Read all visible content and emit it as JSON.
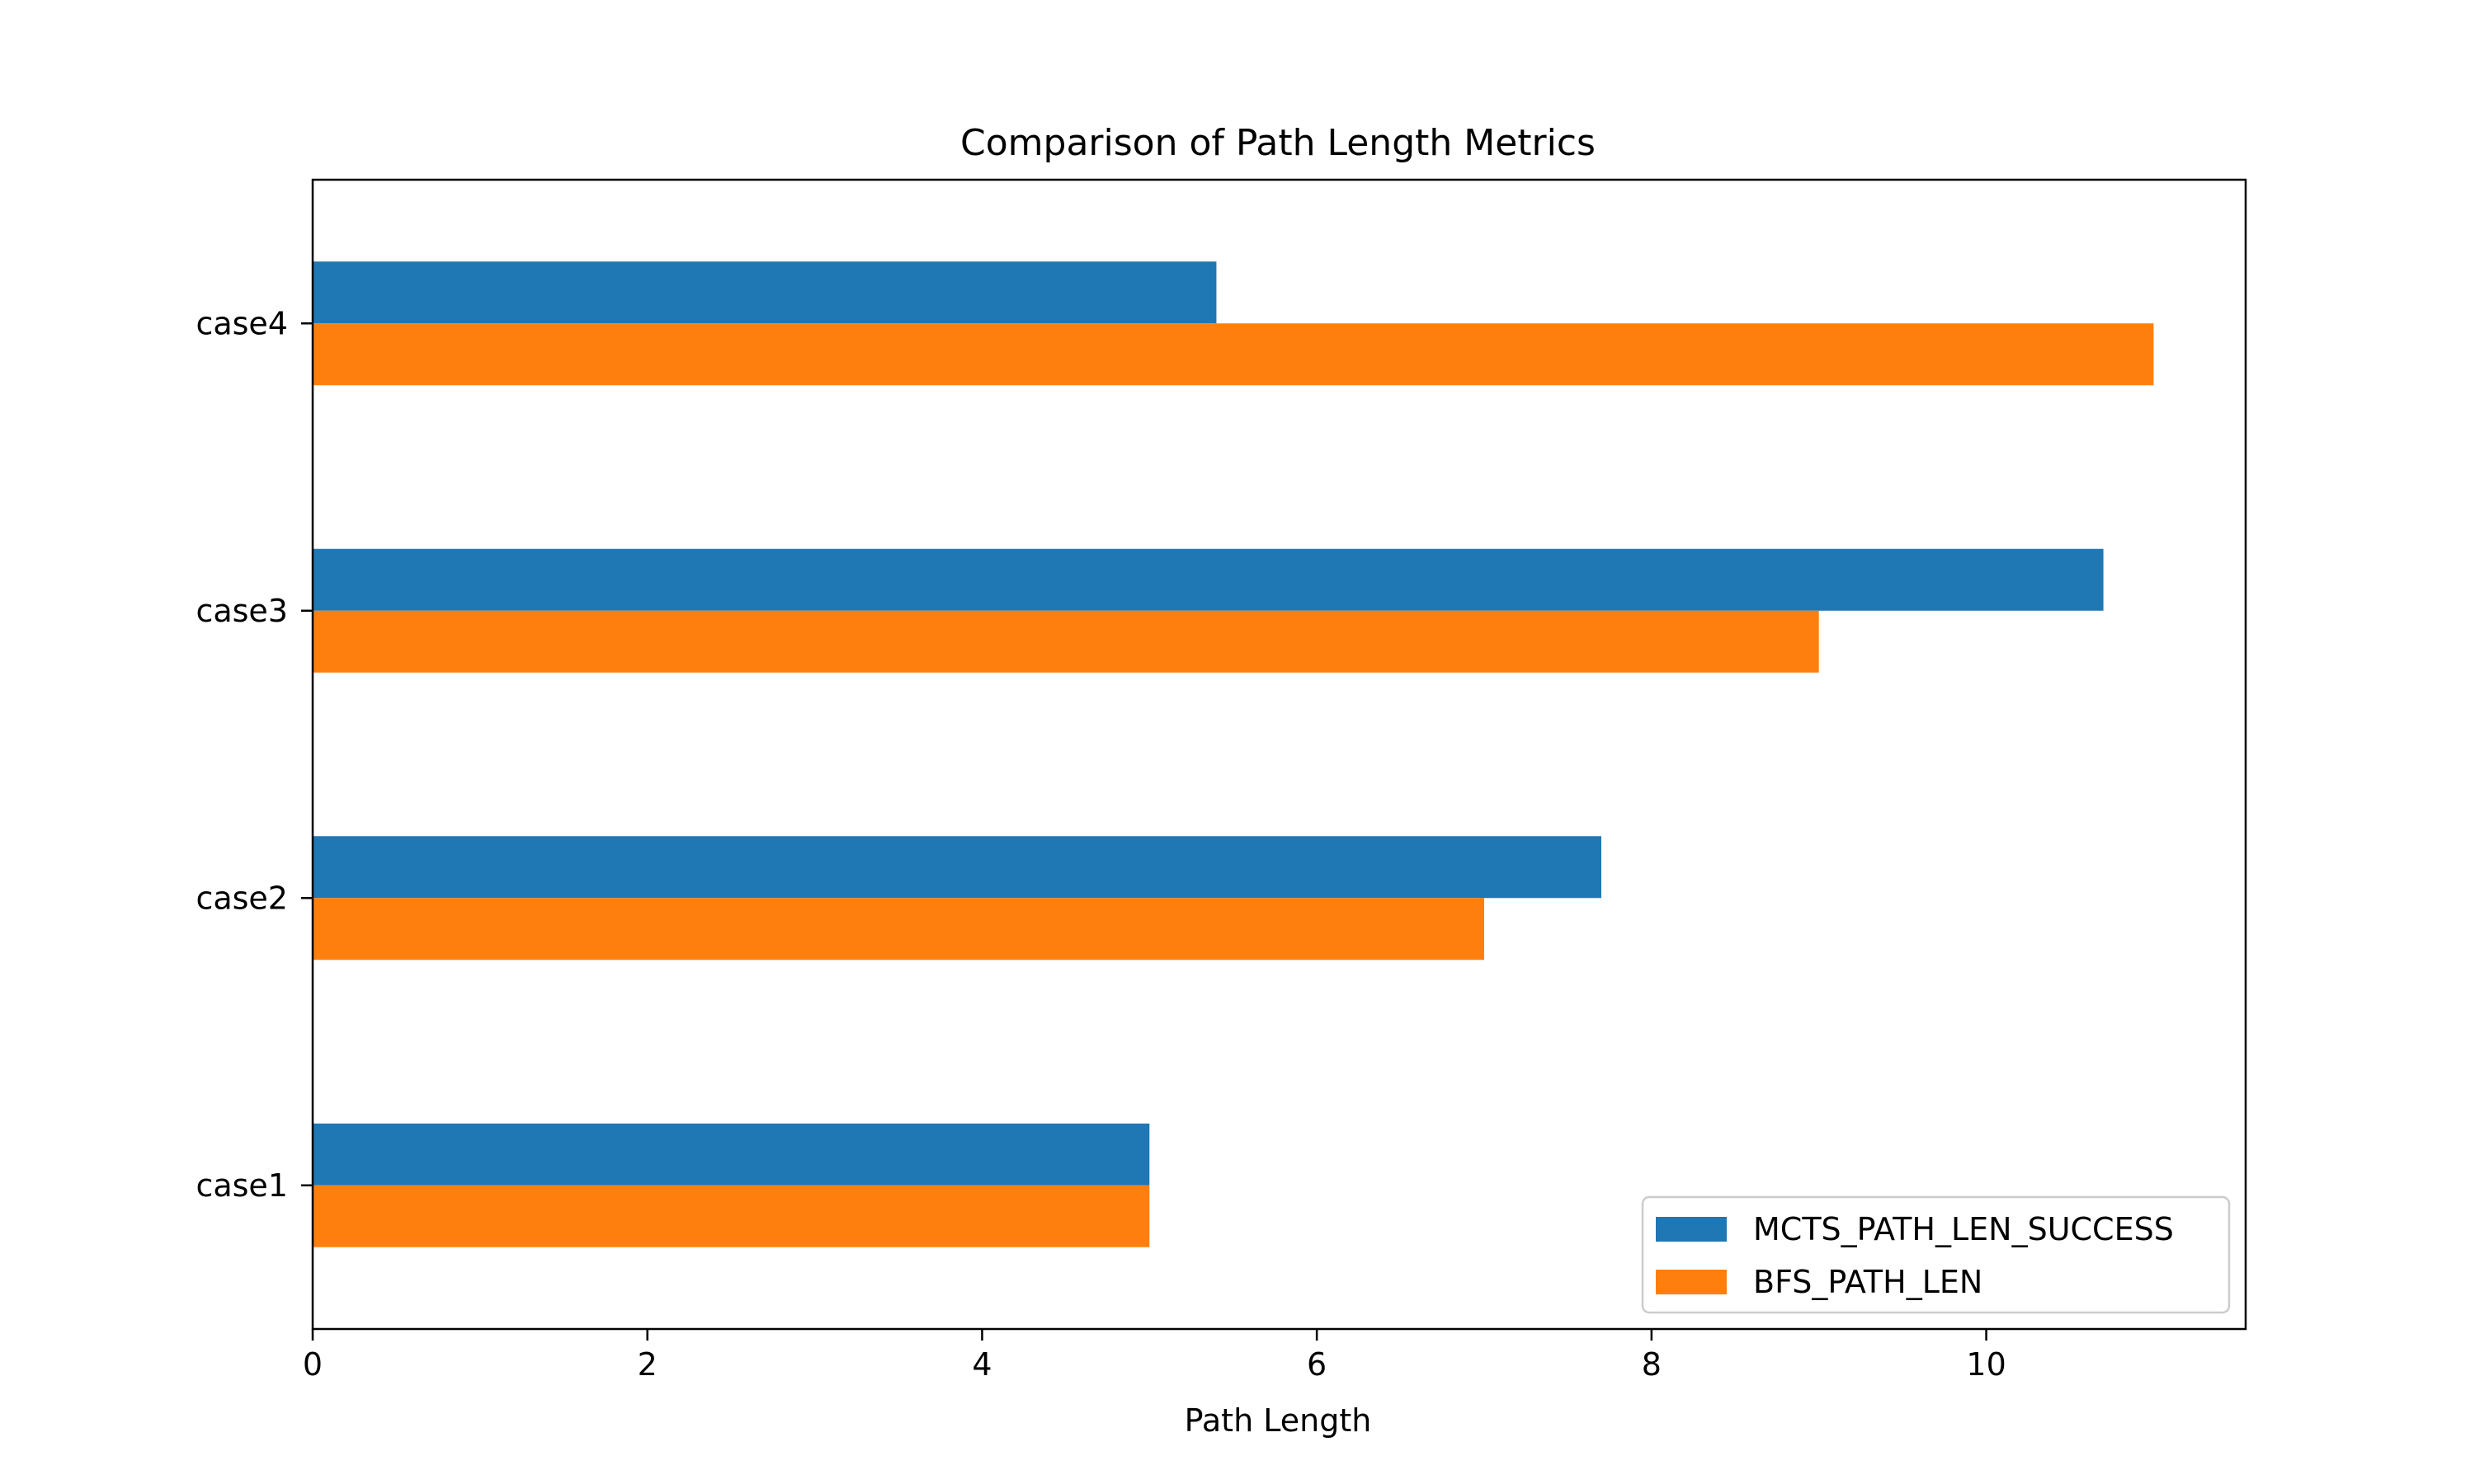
{
  "chart_data": {
    "type": "bar",
    "orientation": "horizontal",
    "title": "Comparison of Path Length Metrics",
    "xlabel": "Path Length",
    "ylabel": "",
    "categories": [
      "case1",
      "case2",
      "case3",
      "case4"
    ],
    "series": [
      {
        "name": "MCTS_PATH_LEN_SUCCESS",
        "color": "#1f77b4",
        "values": [
          5.0,
          7.7,
          10.7,
          5.4
        ]
      },
      {
        "name": "BFS_PATH_LEN",
        "color": "#ff7f0e",
        "values": [
          5.0,
          7.0,
          9.0,
          11.0
        ]
      }
    ],
    "xlim": [
      0,
      11.55
    ],
    "xticks": [
      0,
      2,
      4,
      6,
      8,
      10
    ],
    "xtick_labels": [
      "0",
      "2",
      "4",
      "6",
      "8",
      "10"
    ],
    "grid": false,
    "legend_position": "lower-right"
  }
}
